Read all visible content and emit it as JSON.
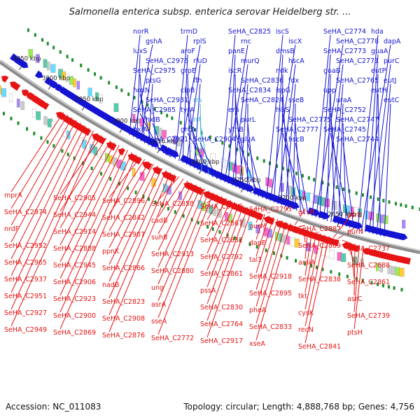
{
  "title": "Salmonella enterica subsp. enterica serovar Heidelberg str. ...",
  "footer": {
    "accession": "Accession: NC_011083",
    "summary": "Topology: circular; Length: 4,888,768 bp; Genes: 4,756"
  },
  "colors": {
    "forward": "#1414d2",
    "reverse": "#e61414",
    "rna": "#3cb4c8",
    "backbone": "#8c8c8c",
    "gc": "#1e8c28"
  },
  "kbp_ticks": [
    "3050 kbp",
    "3000 kbp",
    "2950 kbp",
    "2900 kbp",
    "2850 kbp",
    "2800 kbp",
    "2750 kbp",
    "2700 kbp",
    "2650 kbp"
  ],
  "forward_labels": [
    "norR",
    "gshA",
    "luxS",
    "SeHA_C2976",
    "SeHA_C2975",
    "ptsG",
    "hoxN",
    "SeHA_C2931",
    "SeHA_C2985",
    "hxlB",
    "hxlA",
    "SeHA_C2921",
    "trmD",
    "rplS",
    "aroF",
    "rluD",
    "grpE",
    "ffh",
    "clpB",
    "rrs",
    "tyrA",
    "rrf",
    "grcA",
    "SeHA_C2904",
    "SeHA_C2825",
    "rnc",
    "panE",
    "murQ",
    "iscR",
    "SeHA_C2836",
    "SeHA_C2834",
    "SeHA_C2824",
    "era",
    "purL",
    "ythB",
    "glyA",
    "iscS",
    "iscX",
    "dmsB",
    "hscA",
    "ndk",
    "fdx",
    "ispG",
    "sseB",
    "hisS",
    "SeHA_C2775",
    "SeHA_C2777",
    "hscB",
    "SeHA_C2774",
    "SeHA_C2778",
    "SeHA_C2773",
    "SeHA_C2771",
    "guaB",
    "SeHA_C2765",
    "upp",
    "uraA",
    "SeHA_C2752",
    "SeHA_C2747",
    "SeHA_C2745",
    "SeHA_C2744",
    "hda",
    "dapA",
    "guaA",
    "purC",
    "eutP",
    "eutJ",
    "eutH",
    "eutC"
  ],
  "reverse_labels": [
    "mprA",
    "SeHA_C2974",
    "nrdF",
    "SeHA_C2952",
    "SeHA_C2965",
    "SeHA_C2937",
    "SeHA_C2951",
    "SeHA_C2927",
    "SeHA_C2949",
    "SeHA_C2905",
    "SeHA_C2944",
    "SeHA_C2914",
    "SeHA_C2888",
    "SeHA_C2945",
    "SeHA_C2906",
    "SeHA_C2923",
    "SeHA_C2900",
    "SeHA_C2869",
    "SeHA_C2896",
    "SeHA_C2842",
    "SeHA_C2907",
    "ppnK",
    "SeHA_C2866",
    "nadB",
    "SeHA_C2823",
    "SeHA_C2908",
    "SeHA_C2876",
    "SeHA_C2858",
    "cadB",
    "suhB",
    "SeHA_C2913",
    "SeHA_C2880",
    "ung",
    "asrA",
    "sseA",
    "SeHA_C2772",
    "SeHA_C2916",
    "SeHA_C2867",
    "SeHA_C2832",
    "SeHA_C2792",
    "SeHA_C2861",
    "pssA",
    "SeHA_C2830",
    "SeHA_C2764",
    "SeHA_C2917",
    "SeHA_C2793",
    "purM",
    "dapE",
    "tal1",
    "SeHA_C2918",
    "SeHA_C2895",
    "pheA",
    "SeHA_C2833",
    "xseA",
    "gcvR",
    "SeHA_C2887",
    "SeHA_C2809",
    "amiA",
    "SeHA_C2838",
    "tkt",
    "cysK",
    "recN",
    "SeHA_C2841",
    "asrB",
    "purN",
    "SeHA_C2737",
    "SeHA_C2688",
    "SeHA_C2861",
    "asrC",
    "SeHA_C2739",
    "ptsH"
  ]
}
